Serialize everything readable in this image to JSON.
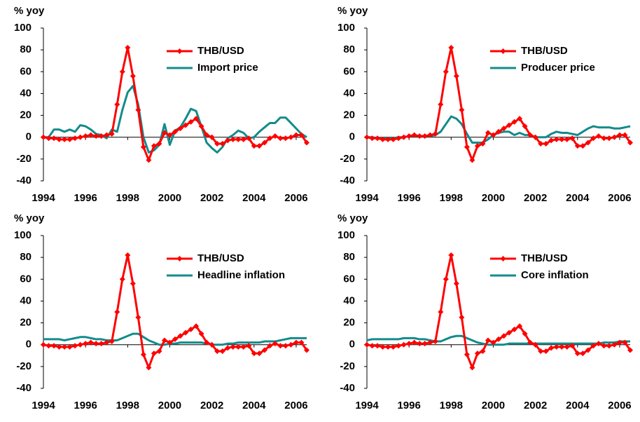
{
  "chart_data": [
    {
      "type": "line",
      "ylabel": "% yoy",
      "xlim": [
        1994,
        2006.5
      ],
      "ylim": [
        -40,
        100
      ],
      "xticks": [
        1994,
        1996,
        1998,
        2000,
        2002,
        2004,
        2006
      ],
      "yticks": [
        -40,
        -20,
        0,
        20,
        40,
        60,
        80,
        100
      ],
      "legend": "upper center",
      "x": [
        1994,
        1994.25,
        1994.5,
        1994.75,
        1995,
        1995.25,
        1995.5,
        1995.75,
        1996,
        1996.25,
        1996.5,
        1996.75,
        1997,
        1997.25,
        1997.5,
        1997.75,
        1998,
        1998.25,
        1998.5,
        1998.75,
        1999,
        1999.25,
        1999.5,
        1999.75,
        2000,
        2000.25,
        2000.5,
        2000.75,
        2001,
        2001.25,
        2001.5,
        2001.75,
        2002,
        2002.25,
        2002.5,
        2002.75,
        2003,
        2003.25,
        2003.5,
        2003.75,
        2004,
        2004.25,
        2004.5,
        2004.75,
        2005,
        2005.25,
        2005.5,
        2005.75,
        2006,
        2006.25,
        2006.5
      ],
      "series": [
        {
          "name": "THB/USD",
          "color": "#ff0000",
          "marker": "diamond",
          "values": [
            0,
            -1,
            -1,
            -2,
            -2,
            -2,
            -1,
            0,
            1,
            2,
            1,
            1,
            2,
            3,
            30,
            60,
            82,
            56,
            25,
            -9,
            -21,
            -8,
            -6,
            4,
            2,
            5,
            8,
            11,
            14,
            17,
            10,
            2,
            0,
            -6,
            -6,
            -3,
            -2,
            -2,
            -2,
            -1,
            -8,
            -8,
            -5,
            -1,
            1,
            -1,
            -1,
            0,
            2,
            2,
            -5
          ]
        },
        {
          "name": "Import price",
          "color": "#138b8b",
          "values": [
            0,
            0,
            7,
            7,
            5,
            7,
            5,
            11,
            10,
            7,
            3,
            2,
            -1,
            7,
            5,
            25,
            41,
            47,
            30,
            0,
            -14,
            -12,
            -7,
            12,
            -7,
            6,
            9,
            17,
            26,
            24,
            10,
            -5,
            -10,
            -14,
            -9,
            -1,
            2,
            6,
            4,
            -1,
            0,
            5,
            9,
            13,
            13,
            18,
            18,
            13,
            8,
            3,
            0
          ]
        }
      ]
    },
    {
      "type": "line",
      "ylabel": "% yoy",
      "xlim": [
        1994,
        2006.5
      ],
      "ylim": [
        -40,
        100
      ],
      "xticks": [
        1994,
        1996,
        1998,
        2000,
        2002,
        2004,
        2006
      ],
      "yticks": [
        -40,
        -20,
        0,
        20,
        40,
        60,
        80,
        100
      ],
      "legend": "upper center",
      "x": [
        1994,
        1994.25,
        1994.5,
        1994.75,
        1995,
        1995.25,
        1995.5,
        1995.75,
        1996,
        1996.25,
        1996.5,
        1996.75,
        1997,
        1997.25,
        1997.5,
        1997.75,
        1998,
        1998.25,
        1998.5,
        1998.75,
        1999,
        1999.25,
        1999.5,
        1999.75,
        2000,
        2000.25,
        2000.5,
        2000.75,
        2001,
        2001.25,
        2001.5,
        2001.75,
        2002,
        2002.25,
        2002.5,
        2002.75,
        2003,
        2003.25,
        2003.5,
        2003.75,
        2004,
        2004.25,
        2004.5,
        2004.75,
        2005,
        2005.25,
        2005.5,
        2005.75,
        2006,
        2006.25,
        2006.5
      ],
      "series": [
        {
          "name": "THB/USD",
          "color": "#ff0000",
          "marker": "diamond",
          "values": [
            0,
            -1,
            -1,
            -2,
            -2,
            -2,
            -1,
            0,
            1,
            2,
            1,
            1,
            2,
            3,
            30,
            60,
            82,
            56,
            25,
            -9,
            -21,
            -8,
            -6,
            4,
            2,
            5,
            8,
            11,
            14,
            17,
            10,
            2,
            0,
            -6,
            -6,
            -3,
            -2,
            -2,
            -2,
            -1,
            -8,
            -8,
            -5,
            -1,
            1,
            -1,
            -1,
            0,
            2,
            2,
            -5
          ]
        },
        {
          "name": "Producer price",
          "color": "#138b8b",
          "values": [
            0,
            0,
            -1,
            -1,
            -1,
            -1,
            0,
            0,
            1,
            1,
            1,
            1,
            1,
            2,
            5,
            12,
            19,
            17,
            12,
            3,
            -5,
            -5,
            -5,
            -2,
            2,
            4,
            5,
            5,
            2,
            4,
            2,
            2,
            0,
            0,
            0,
            3,
            5,
            4,
            4,
            3,
            2,
            5,
            8,
            10,
            9,
            9,
            9,
            8,
            8,
            9,
            10
          ]
        }
      ]
    },
    {
      "type": "line",
      "ylabel": "% yoy",
      "xlim": [
        1994,
        2006.5
      ],
      "ylim": [
        -40,
        100
      ],
      "xticks": [
        1994,
        1996,
        1998,
        2000,
        2002,
        2004,
        2006
      ],
      "yticks": [
        -40,
        -20,
        0,
        20,
        40,
        60,
        80,
        100
      ],
      "legend": "upper center",
      "x": [
        1994,
        1994.25,
        1994.5,
        1994.75,
        1995,
        1995.25,
        1995.5,
        1995.75,
        1996,
        1996.25,
        1996.5,
        1996.75,
        1997,
        1997.25,
        1997.5,
        1997.75,
        1998,
        1998.25,
        1998.5,
        1998.75,
        1999,
        1999.25,
        1999.5,
        1999.75,
        2000,
        2000.25,
        2000.5,
        2000.75,
        2001,
        2001.25,
        2001.5,
        2001.75,
        2002,
        2002.25,
        2002.5,
        2002.75,
        2003,
        2003.25,
        2003.5,
        2003.75,
        2004,
        2004.25,
        2004.5,
        2004.75,
        2005,
        2005.25,
        2005.5,
        2005.75,
        2006,
        2006.25,
        2006.5
      ],
      "series": [
        {
          "name": "THB/USD",
          "color": "#ff0000",
          "marker": "diamond",
          "values": [
            0,
            -1,
            -1,
            -2,
            -2,
            -2,
            -1,
            0,
            1,
            2,
            1,
            1,
            2,
            3,
            30,
            60,
            82,
            56,
            25,
            -9,
            -21,
            -8,
            -6,
            4,
            2,
            5,
            8,
            11,
            14,
            17,
            10,
            2,
            0,
            -6,
            -6,
            -3,
            -2,
            -2,
            -2,
            -1,
            -8,
            -8,
            -5,
            -1,
            1,
            -1,
            -1,
            0,
            2,
            2,
            -5
          ]
        },
        {
          "name": "Headline inflation",
          "color": "#138b8b",
          "values": [
            5,
            5,
            5,
            5,
            4,
            5,
            6,
            7,
            7,
            6,
            5,
            5,
            4,
            4,
            4,
            6,
            8,
            10,
            10,
            7,
            4,
            2,
            0,
            0,
            1,
            1,
            2,
            2,
            2,
            2,
            2,
            1,
            0,
            0,
            0,
            1,
            1,
            2,
            2,
            2,
            2,
            2,
            3,
            3,
            3,
            4,
            5,
            6,
            6,
            6,
            6
          ]
        }
      ]
    },
    {
      "type": "line",
      "ylabel": "% yoy",
      "xlim": [
        1994,
        2006.5
      ],
      "ylim": [
        -40,
        100
      ],
      "xticks": [
        1994,
        1996,
        1998,
        2000,
        2002,
        2004,
        2006
      ],
      "yticks": [
        -40,
        -20,
        0,
        20,
        40,
        60,
        80,
        100
      ],
      "legend": "upper center",
      "x": [
        1994,
        1994.25,
        1994.5,
        1994.75,
        1995,
        1995.25,
        1995.5,
        1995.75,
        1996,
        1996.25,
        1996.5,
        1996.75,
        1997,
        1997.25,
        1997.5,
        1997.75,
        1998,
        1998.25,
        1998.5,
        1998.75,
        1999,
        1999.25,
        1999.5,
        1999.75,
        2000,
        2000.25,
        2000.5,
        2000.75,
        2001,
        2001.25,
        2001.5,
        2001.75,
        2002,
        2002.25,
        2002.5,
        2002.75,
        2003,
        2003.25,
        2003.5,
        2003.75,
        2004,
        2004.25,
        2004.5,
        2004.75,
        2005,
        2005.25,
        2005.5,
        2005.75,
        2006,
        2006.25,
        2006.5
      ],
      "series": [
        {
          "name": "THB/USD",
          "color": "#ff0000",
          "marker": "diamond",
          "values": [
            0,
            -1,
            -1,
            -2,
            -2,
            -2,
            -1,
            0,
            1,
            2,
            1,
            1,
            2,
            3,
            30,
            60,
            82,
            56,
            25,
            -9,
            -21,
            -8,
            -6,
            4,
            2,
            5,
            8,
            11,
            14,
            17,
            10,
            2,
            0,
            -6,
            -6,
            -3,
            -2,
            -2,
            -2,
            -1,
            -8,
            -8,
            -5,
            -1,
            1,
            -1,
            -1,
            0,
            2,
            2,
            -5
          ]
        },
        {
          "name": "Core inflation",
          "color": "#138b8b",
          "values": [
            4,
            5,
            5,
            5,
            5,
            5,
            5,
            6,
            6,
            6,
            5,
            5,
            4,
            3,
            3,
            5,
            7,
            8,
            8,
            6,
            4,
            2,
            1,
            0,
            0,
            0,
            0,
            1,
            1,
            1,
            1,
            1,
            1,
            1,
            1,
            1,
            1,
            1,
            1,
            1,
            1,
            1,
            1,
            1,
            1,
            2,
            2,
            2,
            3,
            3,
            3
          ]
        }
      ]
    }
  ]
}
